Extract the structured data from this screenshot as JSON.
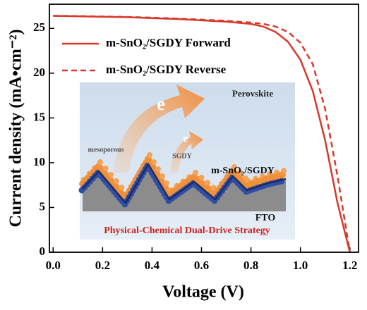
{
  "chart_data": {
    "type": "line",
    "x_label": "Voltage (V)",
    "y_label": "Current density (mA•cm⁻²)",
    "x": [
      0,
      0.1,
      0.2,
      0.3,
      0.4,
      0.5,
      0.6,
      0.7,
      0.8,
      0.85,
      0.9,
      0.95,
      1.0,
      1.05,
      1.1,
      1.15,
      1.2
    ],
    "series": [
      {
        "name": "m-SnO₂/SGDY Forward",
        "color": "#d9382b",
        "dash": false,
        "values": [
          26.4,
          26.35,
          26.3,
          26.25,
          26.15,
          26.05,
          25.9,
          25.75,
          25.5,
          25.2,
          24.6,
          23.5,
          21.5,
          18.0,
          12.5,
          5.5,
          0
        ]
      },
      {
        "name": "m-SnO₂/SGDY Reverse",
        "color": "#d9382b",
        "dash": true,
        "values": [
          26.4,
          26.38,
          26.33,
          26.28,
          26.2,
          26.1,
          25.98,
          25.85,
          25.65,
          25.5,
          25.2,
          24.6,
          23.4,
          21.0,
          16.0,
          8.5,
          0
        ]
      }
    ],
    "xlim": [
      -0.015,
      1.235
    ],
    "ylim": [
      0,
      27.7
    ],
    "xticks": [
      {
        "value": 0,
        "label": "0.0"
      },
      0.2,
      0.4,
      0.6,
      0.8,
      {
        "value": 1,
        "label": "1.0"
      },
      1.2
    ],
    "yticks": [
      0,
      5,
      10,
      15,
      20,
      25
    ],
    "legend": "upper-left",
    "inset": {
      "layer_top": "Perovskite",
      "electron_big": "e",
      "electron_small": "e",
      "mesoporous": "mesoporous",
      "sgdy": "SGDY",
      "etl": "m-SnO₂/SGDY",
      "substrate": "FTO",
      "caption": "Physical-Chemical Dual-Drive Strategy"
    }
  }
}
